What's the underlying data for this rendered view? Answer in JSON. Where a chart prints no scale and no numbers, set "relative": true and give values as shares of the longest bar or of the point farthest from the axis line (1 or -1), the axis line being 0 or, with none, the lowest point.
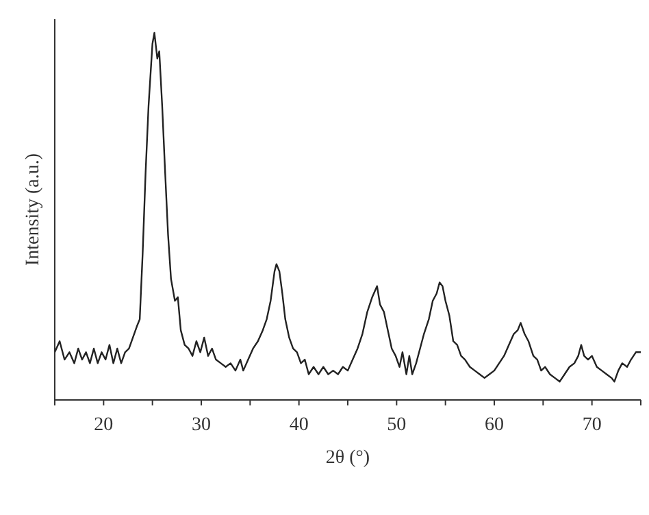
{
  "chart_data": {
    "type": "line",
    "relative": true,
    "xlabel": "2θ (°)",
    "ylabel": "Intensity (a.u.)",
    "xlim": [
      15,
      75
    ],
    "xticks": [
      {
        "value": 15,
        "label": null
      },
      20,
      {
        "value": 25,
        "label": null
      },
      30,
      {
        "value": 35,
        "label": null
      },
      40,
      {
        "value": 45,
        "label": null
      },
      50,
      {
        "value": 55,
        "label": null
      },
      60,
      {
        "value": 65,
        "label": null
      },
      70,
      {
        "value": 75,
        "label": null
      }
    ],
    "grid": false,
    "marker": "none",
    "line_style": "solid",
    "series": [
      {
        "color": "#222222",
        "x": [
          15.0,
          15.5,
          16.0,
          16.5,
          17.0,
          17.4,
          17.8,
          18.2,
          18.6,
          19.0,
          19.4,
          19.8,
          20.2,
          20.6,
          21.0,
          21.4,
          21.8,
          22.2,
          22.6,
          23.0,
          23.4,
          23.7,
          24.0,
          24.3,
          24.6,
          25.0,
          25.2,
          25.5,
          25.7,
          26.0,
          26.3,
          26.6,
          26.9,
          27.3,
          27.6,
          27.9,
          28.3,
          28.7,
          29.1,
          29.5,
          29.9,
          30.3,
          30.7,
          31.1,
          31.5,
          32.0,
          32.5,
          33.0,
          33.5,
          34.0,
          34.3,
          34.8,
          35.3,
          35.8,
          36.3,
          36.7,
          37.1,
          37.5,
          37.7,
          38.0,
          38.3,
          38.6,
          39.0,
          39.4,
          39.8,
          40.2,
          40.6,
          41.0,
          41.5,
          42.0,
          42.5,
          43.0,
          43.5,
          44.0,
          44.5,
          45.0,
          45.5,
          46.0,
          46.5,
          47.0,
          47.5,
          48.0,
          48.3,
          48.7,
          49.1,
          49.5,
          49.9,
          50.3,
          50.6,
          51.0,
          51.3,
          51.6,
          52.0,
          52.4,
          52.8,
          53.3,
          53.7,
          54.1,
          54.4,
          54.7,
          55.0,
          55.4,
          55.8,
          56.2,
          56.6,
          57.0,
          57.5,
          58.0,
          58.5,
          59.0,
          59.5,
          60.0,
          60.5,
          61.0,
          61.5,
          62.0,
          62.4,
          62.7,
          63.1,
          63.5,
          64.0,
          64.4,
          64.8,
          65.2,
          65.7,
          66.2,
          66.7,
          67.2,
          67.7,
          68.2,
          68.6,
          68.9,
          69.2,
          69.6,
          70.0,
          70.5,
          71.0,
          71.5,
          72.0,
          72.3,
          72.7,
          73.1,
          73.6,
          74.0,
          74.5,
          75.0
        ],
        "values": [
          0.13,
          0.16,
          0.11,
          0.13,
          0.1,
          0.14,
          0.11,
          0.13,
          0.1,
          0.14,
          0.1,
          0.13,
          0.11,
          0.15,
          0.1,
          0.14,
          0.1,
          0.13,
          0.14,
          0.17,
          0.2,
          0.22,
          0.4,
          0.62,
          0.8,
          0.97,
          1.0,
          0.93,
          0.95,
          0.8,
          0.62,
          0.45,
          0.33,
          0.27,
          0.28,
          0.19,
          0.15,
          0.14,
          0.12,
          0.16,
          0.13,
          0.17,
          0.12,
          0.14,
          0.11,
          0.1,
          0.09,
          0.1,
          0.08,
          0.11,
          0.08,
          0.11,
          0.14,
          0.16,
          0.19,
          0.22,
          0.27,
          0.35,
          0.37,
          0.35,
          0.29,
          0.22,
          0.17,
          0.14,
          0.13,
          0.1,
          0.11,
          0.07,
          0.09,
          0.07,
          0.09,
          0.07,
          0.08,
          0.07,
          0.09,
          0.08,
          0.11,
          0.14,
          0.18,
          0.24,
          0.28,
          0.31,
          0.26,
          0.24,
          0.19,
          0.14,
          0.12,
          0.09,
          0.13,
          0.07,
          0.12,
          0.07,
          0.1,
          0.14,
          0.18,
          0.22,
          0.27,
          0.29,
          0.32,
          0.31,
          0.27,
          0.23,
          0.16,
          0.15,
          0.12,
          0.11,
          0.09,
          0.08,
          0.07,
          0.06,
          0.07,
          0.08,
          0.1,
          0.12,
          0.15,
          0.18,
          0.19,
          0.21,
          0.18,
          0.16,
          0.12,
          0.11,
          0.08,
          0.09,
          0.07,
          0.06,
          0.05,
          0.07,
          0.09,
          0.1,
          0.12,
          0.15,
          0.12,
          0.11,
          0.12,
          0.09,
          0.08,
          0.07,
          0.06,
          0.05,
          0.08,
          0.1,
          0.09,
          0.11,
          0.13,
          0.13
        ]
      }
    ]
  }
}
